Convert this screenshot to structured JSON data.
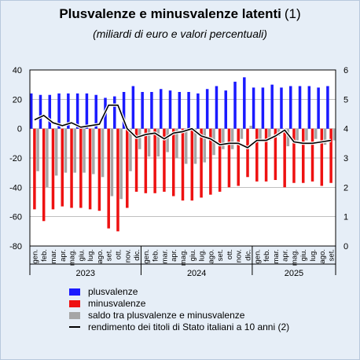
{
  "header": {
    "title": "Plusvalenze e minusvalenze latenti",
    "title_note": "(1)",
    "subtitle": "(miliardi di euro e valori percentuali)"
  },
  "legend": [
    {
      "label": "plusvalenze",
      "color": "#1a1aff"
    },
    {
      "label": "minusvalenze",
      "color": "#ee1111"
    },
    {
      "label": "saldo tra plusvalenze e minusvalenze",
      "color": "#a6a6a6"
    },
    {
      "label": "rendimento dei titoli di Stato italiani a 10 anni (2)",
      "color": "#000000"
    }
  ],
  "chart_data": {
    "type": "bar",
    "title": "Plusvalenze e minusvalenze latenti (1)",
    "subtitle": "(miliardi di euro e valori percentuali)",
    "left_axis": {
      "ylim": [
        -80,
        40
      ],
      "ticks": [
        -80,
        -60,
        -40,
        -20,
        0,
        20,
        40
      ]
    },
    "right_axis": {
      "ylim": [
        0,
        6
      ],
      "ticks": [
        0,
        1,
        2,
        3,
        4,
        5,
        6
      ]
    },
    "grid": true,
    "legend_position": "bottom",
    "categories": [
      "gen.",
      "feb.",
      "mar.",
      "apr.",
      "mag.",
      "giu.",
      "lug.",
      "ago.",
      "set.",
      "ott.",
      "nov.",
      "dic.",
      "gen.",
      "feb.",
      "mar.",
      "apr.",
      "mag.",
      "giu.",
      "lug.",
      "ago.",
      "set.",
      "ott.",
      "nov.",
      "dic.",
      "gen.",
      "feb.",
      "mar.",
      "apr.",
      "mag.",
      "giu.",
      "lug.",
      "ago.",
      "set."
    ],
    "years": [
      {
        "label": "2023",
        "months": 12
      },
      {
        "label": "2024",
        "months": 12
      },
      {
        "label": "2025",
        "months": 9
      }
    ],
    "series": [
      {
        "name": "plusvalenze",
        "axis": "left",
        "color": "#1a1aff",
        "values": [
          24,
          23,
          23,
          24,
          24,
          24,
          24,
          23,
          21,
          22,
          25,
          29,
          25,
          25,
          27,
          26,
          25,
          25,
          24,
          27,
          29,
          26,
          32,
          35,
          28,
          28,
          30,
          28,
          29,
          29,
          29,
          28,
          29
        ]
      },
      {
        "name": "minusvalenze",
        "axis": "left",
        "color": "#ee1111",
        "values": [
          -55,
          -63,
          -55,
          -53,
          -54,
          -54,
          -55,
          -56,
          -68,
          -70,
          -54,
          -43,
          -44,
          -44,
          -43,
          -46,
          -49,
          -49,
          -47,
          -45,
          -43,
          -40,
          -39,
          -33,
          -36,
          -36,
          -35,
          -40,
          -37,
          -37,
          -36,
          -39,
          -37
        ]
      },
      {
        "name": "saldo tra plusvalenze e minusvalenze",
        "axis": "left",
        "color": "#a6a6a6",
        "values": [
          -29,
          -40,
          -32,
          -30,
          -30,
          -30,
          -31,
          -33,
          -46,
          -48,
          -29,
          -14,
          -19,
          -19,
          -16,
          -20,
          -24,
          -24,
          -23,
          -18,
          -14,
          -14,
          -7,
          2,
          -8,
          -8,
          -5,
          -12,
          -8,
          -8,
          -7,
          -11,
          -8
        ]
      },
      {
        "name": "rendimento dei titoli di Stato italiani a 10 anni (2)",
        "axis": "right",
        "type": "line",
        "color": "#000000",
        "values": [
          4.3,
          4.45,
          4.2,
          4.1,
          4.2,
          4.05,
          4.1,
          4.15,
          4.8,
          4.8,
          4.0,
          3.7,
          3.8,
          3.85,
          3.65,
          3.85,
          3.9,
          4.0,
          3.75,
          3.65,
          3.45,
          3.5,
          3.5,
          3.35,
          3.6,
          3.6,
          3.75,
          3.95,
          3.55,
          3.5,
          3.5,
          3.55,
          3.6
        ]
      }
    ]
  }
}
